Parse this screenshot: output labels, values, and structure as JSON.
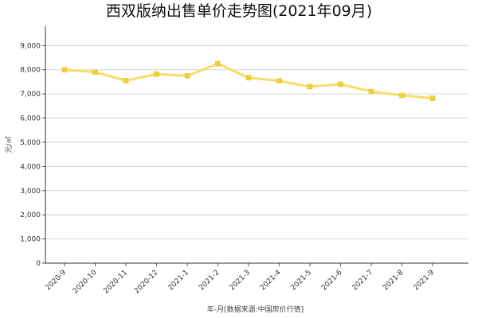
{
  "chart_data": {
    "type": "line",
    "title": "西双版纳出售单价走势图(2021年09月)",
    "xlabel": "年-月[数据来源:中国房价行情]",
    "ylabel": "元/㎡",
    "categories": [
      "2020-9",
      "2020-10",
      "2020-11",
      "2020-12",
      "2021-1",
      "2021-2",
      "2021-3",
      "2021-4",
      "2021-5",
      "2021-6",
      "2021-7",
      "2021-8",
      "2021-9"
    ],
    "series": [
      {
        "values": [
          8000,
          7900,
          7550,
          7820,
          7750,
          8250,
          7670,
          7540,
          7300,
          7400,
          7100,
          6940,
          6820
        ]
      }
    ],
    "ylim": [
      0,
      9800
    ],
    "yticks": [
      0,
      1000,
      2000,
      3000,
      4000,
      5000,
      6000,
      7000,
      8000,
      9000
    ],
    "ytick_labels": [
      "0",
      "1,000",
      "2,000",
      "3,000",
      "4,000",
      "5,000",
      "6,000",
      "7,000",
      "8,000",
      "9,000"
    ],
    "grid": true,
    "line_color": "#f7d95a",
    "marker_color": "#f0cf3e",
    "grid_color": "#c8c8c8"
  }
}
